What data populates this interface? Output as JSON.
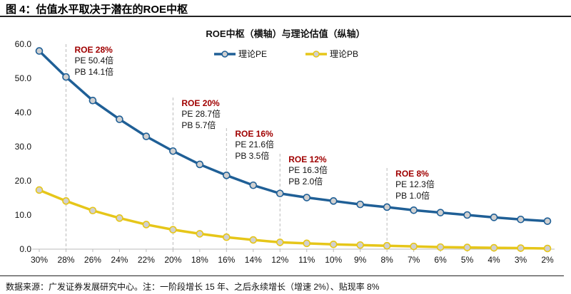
{
  "figure_title": "图 4：估值水平取决于潜在的ROE中枢",
  "source": "数据来源：广发证券发展研究中心。注：一阶段增长 15 年、之后永续增长（增速 2%）、贴现率 8%",
  "chart_data": {
    "type": "line",
    "title": "ROE中枢（横轴）与理论估值（纵轴）",
    "categories": [
      "30%",
      "28%",
      "26%",
      "24%",
      "22%",
      "20%",
      "18%",
      "16%",
      "14%",
      "12%",
      "11%",
      "10%",
      "9%",
      "8%",
      "7%",
      "6%",
      "5%",
      "4%",
      "3%",
      "2%"
    ],
    "yticks": [
      "0.0",
      "10.0",
      "20.0",
      "30.0",
      "40.0",
      "50.0",
      "60.0"
    ],
    "ylim": [
      0,
      60
    ],
    "grid": false,
    "legend": "top",
    "series": [
      {
        "name": "理论PE",
        "color": "#1f5f96",
        "values": [
          58.0,
          50.4,
          43.5,
          38.0,
          33.0,
          28.7,
          24.8,
          21.6,
          18.7,
          16.3,
          15.1,
          14.1,
          13.1,
          12.3,
          11.4,
          10.7,
          10.0,
          9.3,
          8.7,
          8.2
        ]
      },
      {
        "name": "理论PB",
        "color": "#e6c619",
        "values": [
          17.3,
          14.1,
          11.3,
          9.1,
          7.2,
          5.7,
          4.5,
          3.5,
          2.7,
          2.0,
          1.7,
          1.4,
          1.2,
          1.0,
          0.8,
          0.6,
          0.5,
          0.4,
          0.3,
          0.2
        ]
      }
    ],
    "annotations": [
      {
        "category": "28%",
        "roe": "ROE 28%",
        "pe": "PE 50.4倍",
        "pb": "PB 14.1倍"
      },
      {
        "category": "20%",
        "roe": "ROE 20%",
        "pe": "PE 28.7倍",
        "pb": "PB 5.7倍"
      },
      {
        "category": "16%",
        "roe": "ROE 16%",
        "pe": "PE 21.6倍",
        "pb": "PB 3.5倍"
      },
      {
        "category": "12%",
        "roe": "ROE 12%",
        "pe": "PE 16.3倍",
        "pb": "PB 2.0倍"
      },
      {
        "category": "8%",
        "roe": "ROE 8%",
        "pe": "PE 12.3倍",
        "pb": "PB 1.0倍"
      }
    ],
    "annotation_color": "#a00000"
  }
}
